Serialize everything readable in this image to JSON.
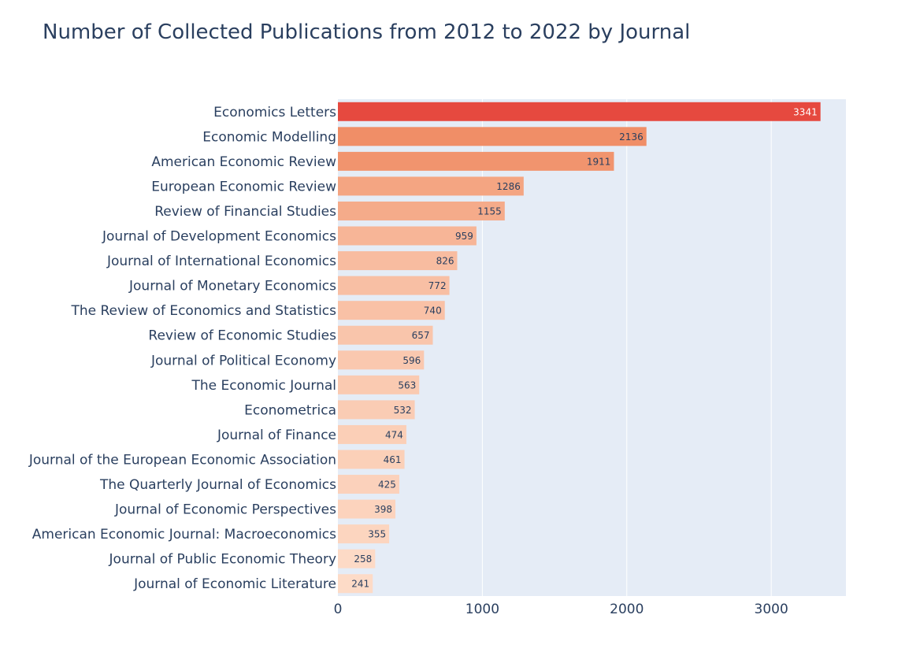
{
  "chart_data": {
    "type": "bar",
    "orientation": "horizontal",
    "title": "Number of Collected Publications from 2012 to 2022 by Journal",
    "xlabel": "",
    "ylabel": "",
    "xlim": [
      0,
      3517
    ],
    "xticks": [
      0,
      1000,
      2000,
      3000
    ],
    "grid": true,
    "legend": "none",
    "plot_background": "#e5ecf6",
    "colorscale": [
      "#fddbc7",
      "#f4a582",
      "#ef8a62",
      "#e6493f"
    ],
    "categories": [
      "Economics Letters",
      "Economic Modelling",
      "American Economic Review",
      "European Economic Review",
      "Review of Financial Studies",
      "Journal of Development Economics",
      "Journal of International Economics",
      "Journal of Monetary Economics",
      "The Review of Economics and Statistics",
      "Review of Economic Studies",
      "Journal of Political Economy",
      "The Economic Journal",
      "Econometrica",
      "Journal of Finance",
      "Journal of the European Economic Association",
      "The Quarterly Journal of Economics",
      "Journal of Economic Perspectives",
      "American Economic Journal: Macroeconomics",
      "Journal of Public Economic Theory",
      "Journal of Economic Literature"
    ],
    "values": [
      3341,
      2136,
      1911,
      1286,
      1155,
      959,
      826,
      772,
      740,
      657,
      596,
      563,
      532,
      474,
      461,
      425,
      398,
      355,
      258,
      241
    ]
  }
}
